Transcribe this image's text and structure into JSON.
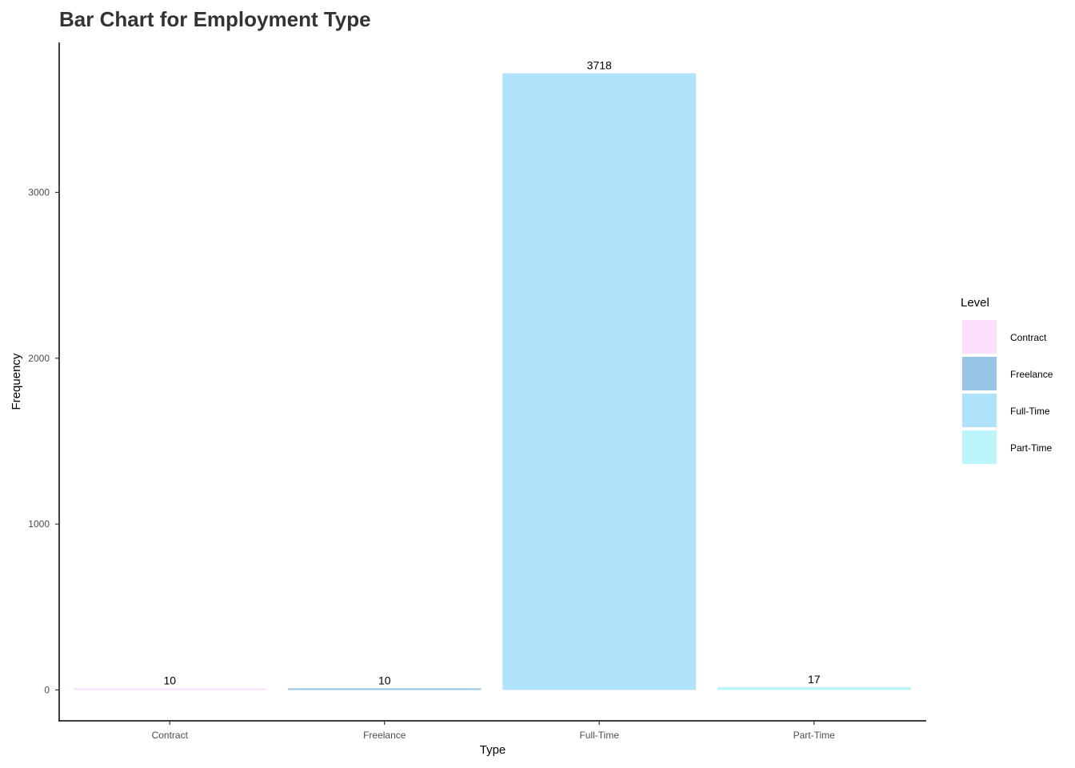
{
  "chart_data": {
    "type": "bar",
    "title": "Bar Chart for Employment Type",
    "xlabel": "Type",
    "ylabel": "Frequency",
    "categories": [
      "Contract",
      "Freelance",
      "Full-Time",
      "Part-Time"
    ],
    "values": [
      10,
      10,
      3718,
      17
    ],
    "data_labels": [
      "10",
      "10",
      "3718",
      "17"
    ],
    "yticks": [
      0,
      1000,
      2000,
      3000
    ],
    "ytick_labels": [
      "0",
      "1000",
      "2000",
      "3000"
    ],
    "ylim": [
      -186,
      3904
    ],
    "grid": false,
    "legend": {
      "title": "Level",
      "position": "right",
      "entries": [
        "Contract",
        "Freelance",
        "Full-Time",
        "Part-Time"
      ]
    },
    "colors": [
      "#fbdffb",
      "#96c5e6",
      "#b0e2fc",
      "#bbf4fb"
    ]
  }
}
